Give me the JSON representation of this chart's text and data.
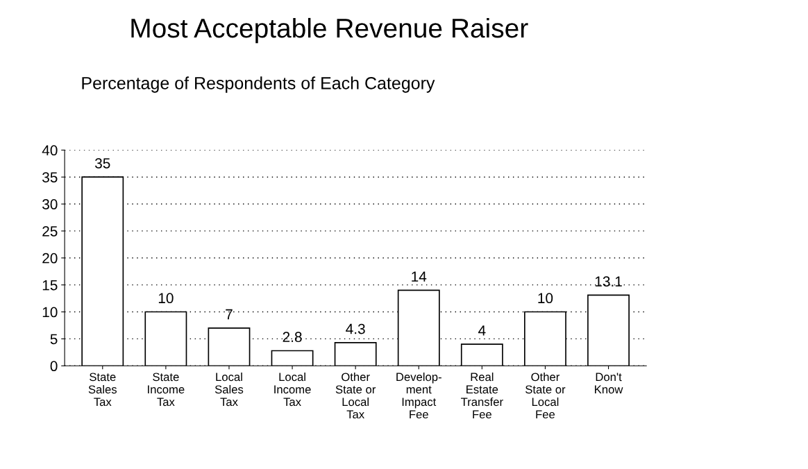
{
  "chart_data": {
    "type": "bar",
    "title": "Most Acceptable Revenue Raiser",
    "subtitle": "Percentage of Respondents of Each Category",
    "categories": [
      "State\nSales\nTax",
      "State\nIncome\nTax",
      "Local\nSales\nTax",
      "Local\nIncome\nTax",
      "Other\nState or\nLocal\nTax",
      "Develop-\nment\nImpact\nFee",
      "Real\nEstate\nTransfer\nFee",
      "Other\nState or\nLocal\nFee",
      "Don't\nKnow"
    ],
    "values": [
      35,
      10,
      7,
      2.8,
      4.3,
      14,
      4,
      10,
      13.1
    ],
    "color": "#ffffff",
    "ylim": [
      0,
      40
    ],
    "yticks": [
      0,
      5,
      10,
      15,
      20,
      25,
      30,
      35,
      40
    ],
    "grid": "y",
    "data_labels": true
  }
}
